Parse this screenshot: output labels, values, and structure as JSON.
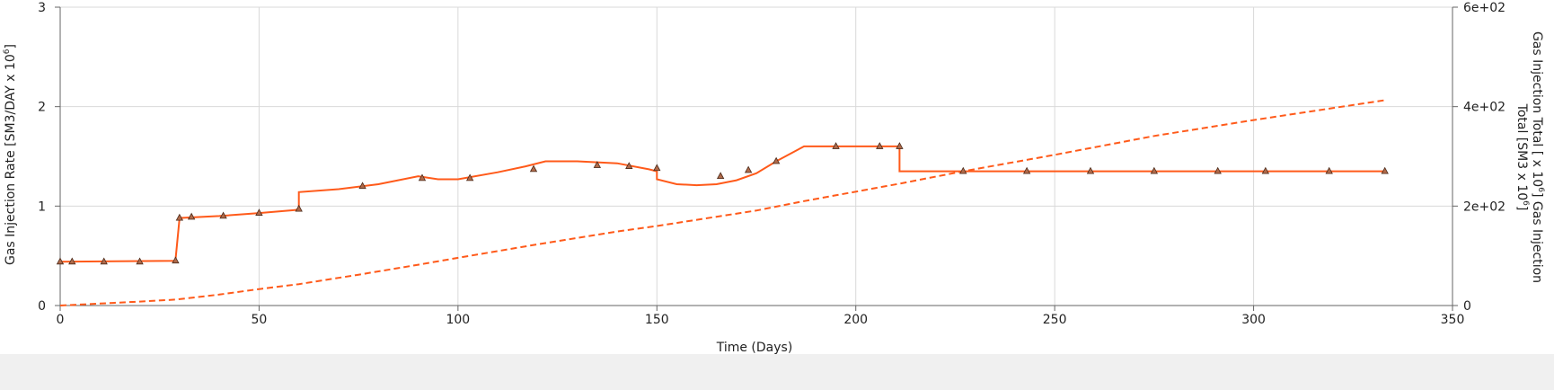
{
  "chart_data": {
    "type": "line",
    "xlabel": "Time (Days)",
    "ylabel": "Gas Injection Rate [SM3/DAY x 10",
    "ylabel_sup": "6",
    "ylabel_tail": "]",
    "y2label_line1": "Gas Injection Total [ x 10",
    "y2label_line1_sup": "6",
    "y2label_line1_tail": "] Gas Injection",
    "y2label_line2": "Total [SM3 x 10",
    "y2label_line2_sup": "6",
    "y2label_line2_tail": "]",
    "xlim": [
      0,
      350
    ],
    "ylim": [
      0,
      3
    ],
    "y2lim": [
      0,
      600
    ],
    "x_ticks": [
      {
        "v": 0,
        "label": "0"
      },
      {
        "v": 50,
        "label": "50"
      },
      {
        "v": 100,
        "label": "100"
      },
      {
        "v": 150,
        "label": "150"
      },
      {
        "v": 200,
        "label": "200"
      },
      {
        "v": 250,
        "label": "250"
      },
      {
        "v": 300,
        "label": "300"
      },
      {
        "v": 350,
        "label": "350"
      }
    ],
    "y_ticks": [
      {
        "v": 0,
        "label": "0"
      },
      {
        "v": 1,
        "label": "1"
      },
      {
        "v": 2,
        "label": "2"
      },
      {
        "v": 3,
        "label": "3"
      }
    ],
    "y2_ticks": [
      {
        "v": 0,
        "label": "0"
      },
      {
        "v": 200,
        "label": "2e+02"
      },
      {
        "v": 400,
        "label": "4e+02"
      },
      {
        "v": 600,
        "label": "6e+02"
      }
    ],
    "grid": true,
    "colors": {
      "line": "#ff5a1a",
      "marker_fill": "#b06a4a",
      "marker_stroke": "#4a2a1a",
      "grid": "#d9d9d9",
      "axis": "#666666"
    },
    "series": [
      {
        "axis": "left",
        "style": "solid",
        "x": [
          0,
          29,
          29,
          30,
          40,
          50,
          59,
          60,
          60,
          70,
          80,
          90,
          95,
          100,
          110,
          117,
          122,
          130,
          140,
          148,
          150,
          150,
          155,
          160,
          165,
          170,
          175,
          180,
          187,
          195,
          205,
          211,
          211,
          220,
          227,
          250,
          275,
          300,
          333
        ],
        "y": [
          0.44,
          0.45,
          0.46,
          0.88,
          0.9,
          0.93,
          0.96,
          0.97,
          1.14,
          1.17,
          1.22,
          1.3,
          1.27,
          1.27,
          1.34,
          1.4,
          1.45,
          1.45,
          1.43,
          1.37,
          1.35,
          1.27,
          1.22,
          1.21,
          1.22,
          1.26,
          1.33,
          1.45,
          1.6,
          1.6,
          1.6,
          1.6,
          1.35,
          1.35,
          1.35,
          1.35,
          1.35,
          1.35,
          1.35
        ]
      },
      {
        "axis": "right",
        "style": "dashed",
        "x": [
          0,
          10,
          20,
          29,
          40,
          50,
          60,
          75,
          90,
          100,
          120,
          140,
          150,
          175,
          187,
          211,
          227,
          250,
          275,
          300,
          333
        ],
        "y": [
          0,
          4,
          8,
          12,
          22,
          33,
          43,
          62,
          82,
          96,
          123,
          149,
          160,
          191,
          210,
          245,
          270,
          303,
          341,
          373,
          413
        ]
      },
      {
        "axis": "left",
        "style": "markers",
        "x": [
          0,
          3,
          11,
          20,
          29,
          30,
          33,
          41,
          50,
          60,
          76,
          91,
          103,
          119,
          135,
          143,
          150,
          166,
          173,
          180,
          195,
          206,
          211,
          227,
          243,
          259,
          275,
          291,
          303,
          319,
          333
        ],
        "y": [
          0.44,
          0.44,
          0.44,
          0.44,
          0.45,
          0.88,
          0.89,
          0.9,
          0.93,
          0.97,
          1.2,
          1.28,
          1.28,
          1.37,
          1.41,
          1.4,
          1.38,
          1.3,
          1.36,
          1.45,
          1.6,
          1.6,
          1.6,
          1.35,
          1.35,
          1.35,
          1.35,
          1.35,
          1.35,
          1.35,
          1.35
        ]
      }
    ]
  }
}
